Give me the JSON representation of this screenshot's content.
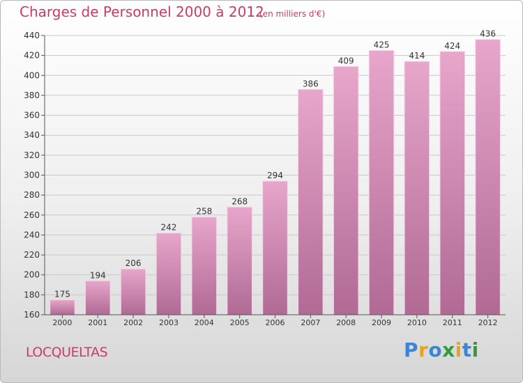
{
  "title": "Charges de Personnel 2000 à 2012",
  "subtitle": "(en milliers d'€)",
  "place": "LOCQUELTAS",
  "logo": {
    "text": "Proxiti",
    "letters": [
      {
        "char": "P",
        "color": "#3a86d6"
      },
      {
        "char": "r",
        "color": "#e8a21c"
      },
      {
        "char": "o",
        "color": "#3a86d6"
      },
      {
        "char": "x",
        "color": "#2f9e3a"
      },
      {
        "char": "i",
        "color": "#e8a21c"
      },
      {
        "char": "t",
        "color": "#3a86d6"
      },
      {
        "char": "i",
        "color": "#2f9e3a"
      }
    ]
  },
  "colors": {
    "accent": "#cc3a66",
    "bar_top": "#e8a6cb",
    "bar_bottom": "#b06a94",
    "grid": "#c8c8c8"
  },
  "chart_data": {
    "type": "bar",
    "title": "Charges de Personnel 2000 à 2012",
    "subtitle": "(en milliers d'€)",
    "categories": [
      "2000",
      "2001",
      "2002",
      "2003",
      "2004",
      "2005",
      "2006",
      "2007",
      "2008",
      "2009",
      "2010",
      "2011",
      "2012"
    ],
    "values": [
      175,
      194,
      206,
      242,
      258,
      268,
      294,
      386,
      409,
      425,
      414,
      424,
      436
    ],
    "ylim": [
      160,
      440
    ],
    "yticks": [
      160,
      180,
      200,
      220,
      240,
      260,
      280,
      300,
      320,
      340,
      360,
      380,
      400,
      420,
      440
    ],
    "grid": true,
    "data_labels": true
  }
}
